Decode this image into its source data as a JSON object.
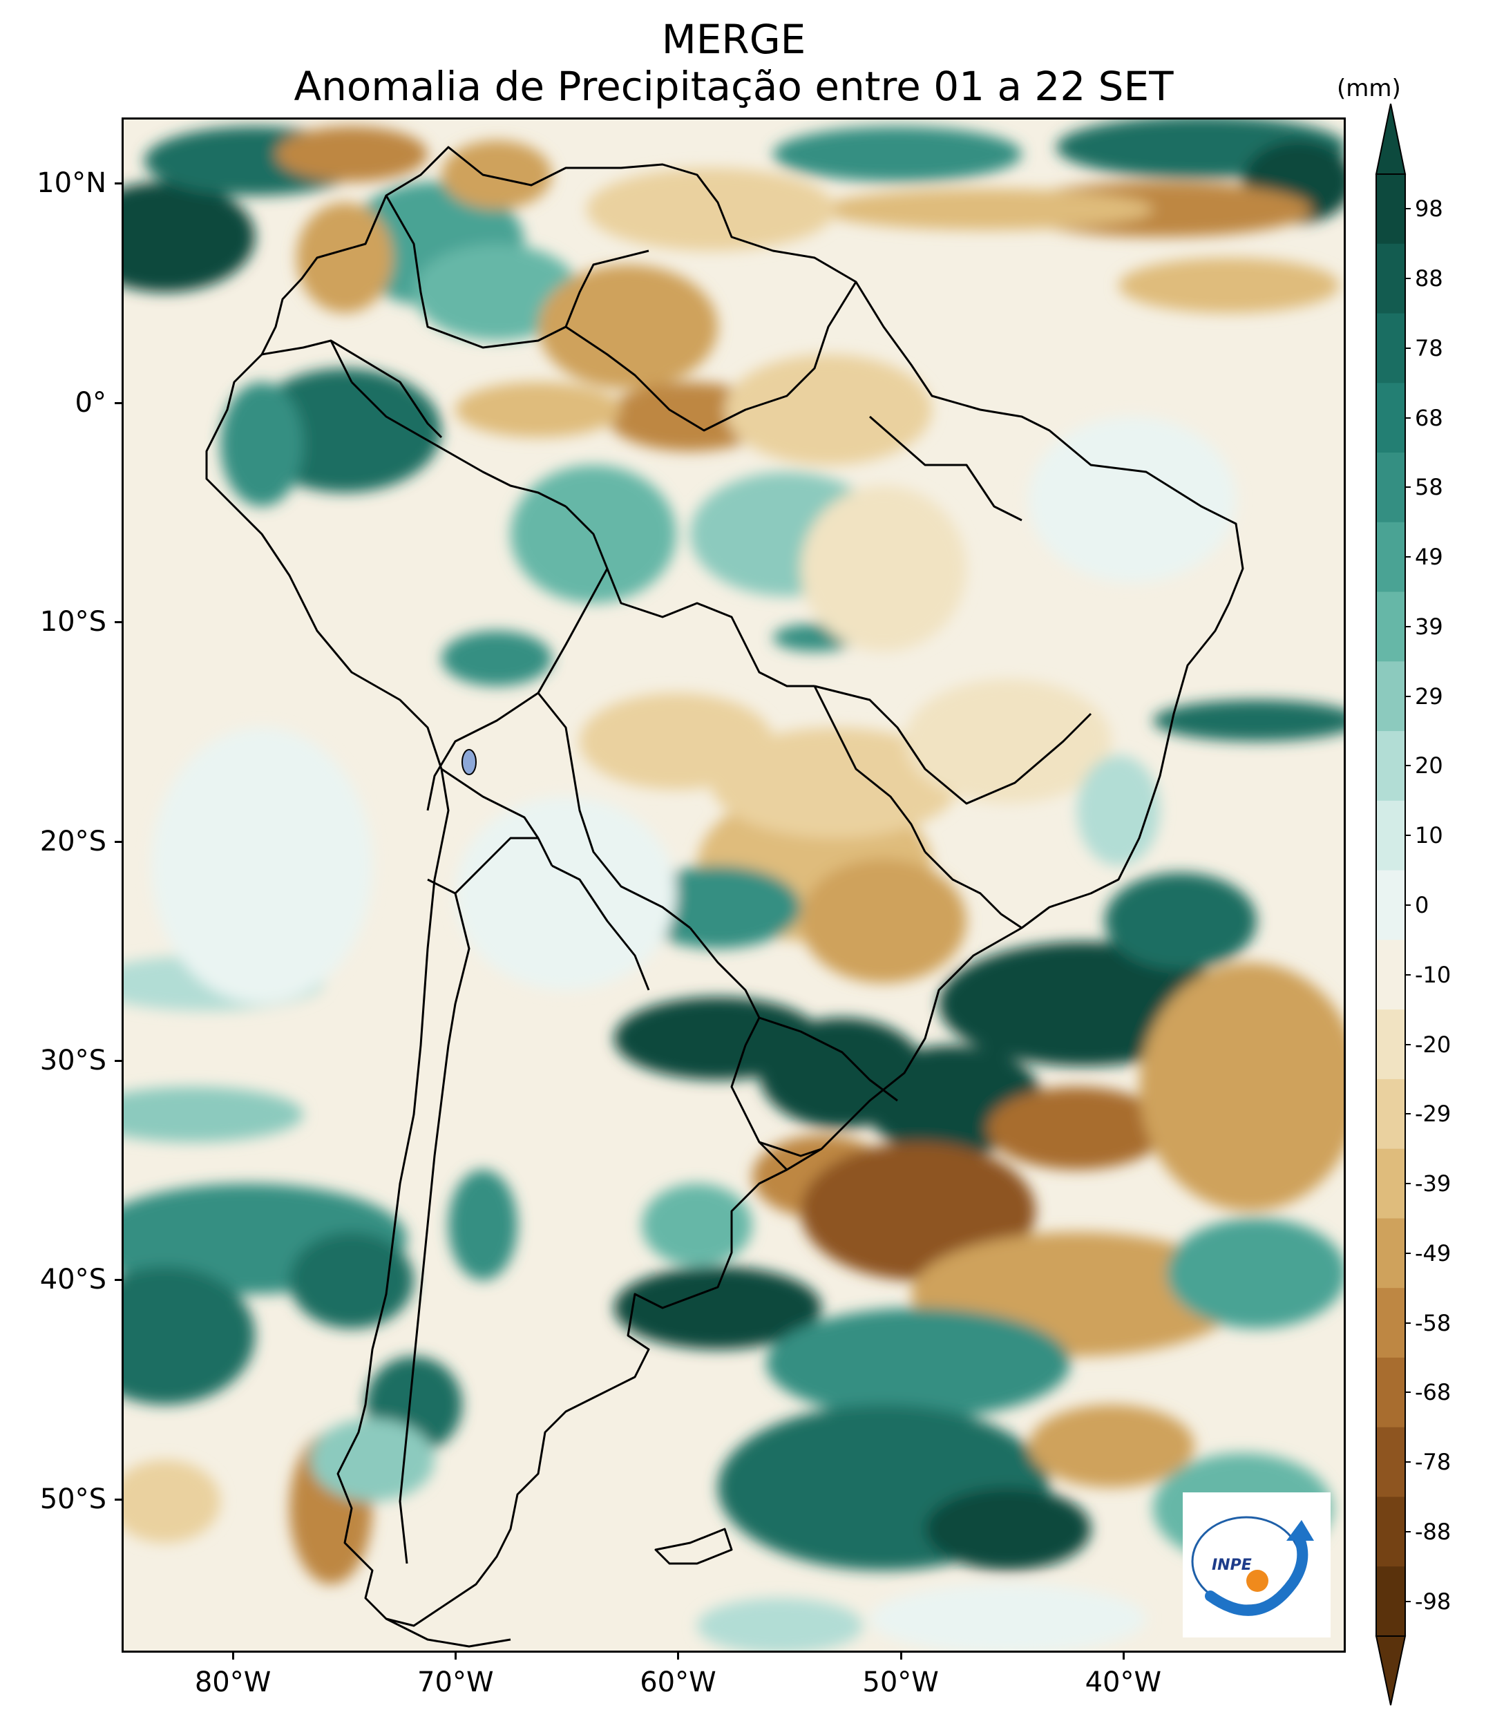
{
  "title": {
    "line1": "MERGE",
    "line2": "Anomalia de Precipitação entre 01 a 22 SET"
  },
  "axes": {
    "y_labels": [
      "10°N",
      "0°",
      "10°S",
      "20°S",
      "30°S",
      "40°S",
      "50°S"
    ],
    "x_labels": [
      "80°W",
      "70°W",
      "60°W",
      "50°W",
      "40°W"
    ]
  },
  "colorbar": {
    "unit": "(mm)",
    "labels": [
      "98",
      "88",
      "78",
      "68",
      "58",
      "49",
      "39",
      "29",
      "20",
      "10",
      "0",
      "-10",
      "-20",
      "-29",
      "-39",
      "-49",
      "-58",
      "-68",
      "-78",
      "-88",
      "-98"
    ],
    "colors": [
      "#0d4a3e",
      "#135c50",
      "#1a6e62",
      "#237f73",
      "#348f82",
      "#4aa394",
      "#66b7a7",
      "#8ccabe",
      "#b2ddd5",
      "#d3ece7",
      "#eaf4f2",
      "#f5f0e3",
      "#f1e3c2",
      "#ead19f",
      "#dfbc7c",
      "#cfa25c",
      "#be8743",
      "#a86d2f",
      "#8e5520",
      "#744214",
      "#5a320c"
    ]
  },
  "logo": {
    "text": "INPE",
    "name": "inpe-logo"
  },
  "map": {
    "extent_lon": [
      -85,
      -30
    ],
    "extent_lat": [
      -57,
      13
    ],
    "name": "precipitation-anomaly-map"
  }
}
